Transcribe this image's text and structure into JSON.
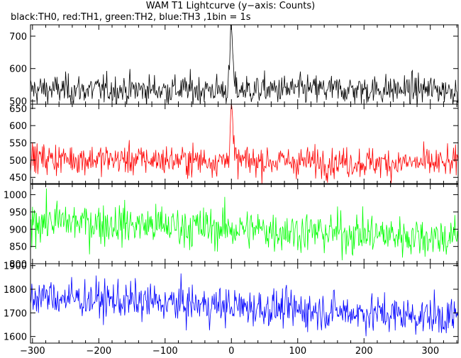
{
  "title": "WAM T1 Lightcurve (y−axis: Counts)",
  "subtitle": "black:TH0, red:TH1, green:TH2, blue:TH3 ,1bin = 1s",
  "chart_data": {
    "type": "line",
    "x_range": [
      -303,
      342
    ],
    "x_ticks": [
      -300,
      -200,
      -100,
      0,
      100,
      200,
      300
    ],
    "x_tick_labels": [
      "−300",
      "−200",
      "−100",
      "0",
      "100",
      "200",
      "300"
    ],
    "panels": [
      {
        "series": "TH0",
        "color": "#000000",
        "ylim": [
          490,
          735
        ],
        "y_ticks": [
          500,
          600,
          700
        ],
        "baseline_start": 535,
        "baseline_end": 535,
        "noise": 23,
        "peak_x": 0,
        "peak_height": 185,
        "peak_width": 3,
        "min_observed": 500,
        "max_observed": 740
      },
      {
        "series": "TH1",
        "color": "#ff0000",
        "ylim": [
          432,
          662
        ],
        "y_ticks": [
          450,
          500,
          550,
          600,
          650
        ],
        "baseline_start": 505,
        "baseline_end": 490,
        "noise": 22,
        "peak_x": 0,
        "peak_height": 160,
        "peak_width": 3,
        "min_observed": 440,
        "max_observed": 665
      },
      {
        "series": "TH2",
        "color": "#00ff00",
        "ylim": [
          800,
          1030
        ],
        "y_ticks": [
          800,
          850,
          900,
          950,
          1000
        ],
        "baseline_start": 925,
        "baseline_end": 875,
        "noise": 30,
        "peak_x": 0,
        "peak_height": 0,
        "peak_width": 3,
        "min_observed": 805,
        "max_observed": 1040
      },
      {
        "series": "TH3",
        "color": "#0000ff",
        "ylim": [
          1572,
          1908
        ],
        "y_ticks": [
          1600,
          1700,
          1800,
          1900
        ],
        "baseline_start": 1770,
        "baseline_end": 1680,
        "noise": 40,
        "peak_x": 0,
        "peak_height": 0,
        "peak_width": 3,
        "min_observed": 1580,
        "max_observed": 1910
      }
    ]
  }
}
